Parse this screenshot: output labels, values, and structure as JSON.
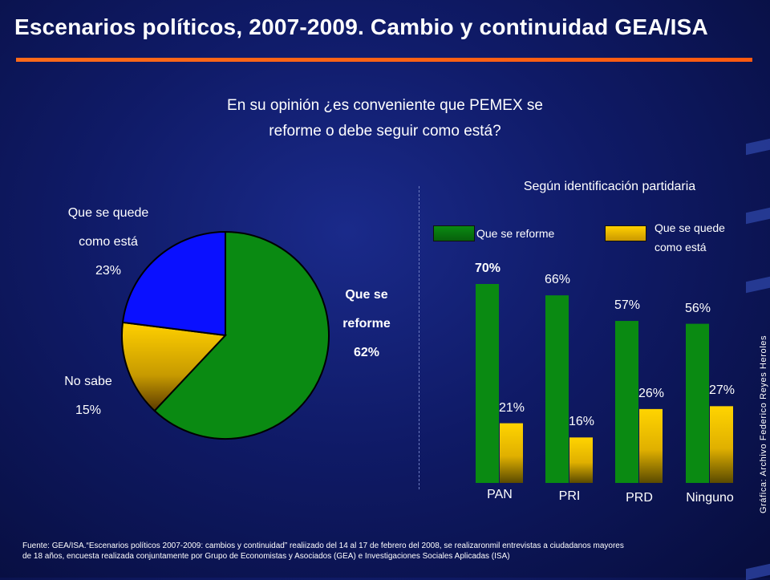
{
  "title": "Escenarios políticos, 2007-2009. Cambio y continuidad GEA/ISA",
  "question_line1": "En su opinión ¿es conveniente que PEMEX se",
  "question_line2": "reforme o debe seguir como está?",
  "colors": {
    "green": "#0a8a12",
    "yellow": "#f2c400",
    "blue": "#0a10ff",
    "accent": "#ff6a1a"
  },
  "chart_data": [
    {
      "type": "pie",
      "labels": [
        "Que se reforme",
        "No sabe",
        "Que se quede como está"
      ],
      "values": [
        62,
        15,
        23
      ],
      "label_text": {
        "reforme": [
          "Que se",
          "reforme",
          "62%"
        ],
        "nosabe": [
          "No sabe",
          "15%"
        ],
        "quede": [
          "Que se quede",
          "como está",
          "23%"
        ]
      }
    },
    {
      "type": "bar",
      "title": "Según identificación partidaria",
      "categories": [
        "PAN",
        "PRI",
        "PRD",
        "Ninguno"
      ],
      "ylim": [
        0,
        100
      ],
      "series": [
        {
          "name": "Que se reforme",
          "values": [
            70,
            66,
            57,
            56
          ],
          "labels": [
            "70%",
            "66%",
            "57%",
            "56%"
          ]
        },
        {
          "name": "Que se quede como está",
          "values": [
            21,
            16,
            26,
            27
          ],
          "labels": [
            "21%",
            "16%",
            "26%",
            "27%"
          ]
        }
      ],
      "legend": {
        "reforme": "Que se reforme",
        "quede_line1": "Que se quede",
        "quede_line2": "como está"
      }
    }
  ],
  "credit": "Gráfica: Archivo Federico Reyes Heroles",
  "footer_line1": "Fuente: GEA/ISA.“Escenarios políticos 2007-2009: cambios y continuidad” realiizado del 14 al 17 de febrero del 2008, se realizaronmil entrevistas a ciudadanos mayores",
  "footer_line2": "de 18 años, encuesta realizada conjuntamente por Grupo de Economistas y Asociados (GEA) e Investigaciones Sociales Aplicadas (ISA)"
}
